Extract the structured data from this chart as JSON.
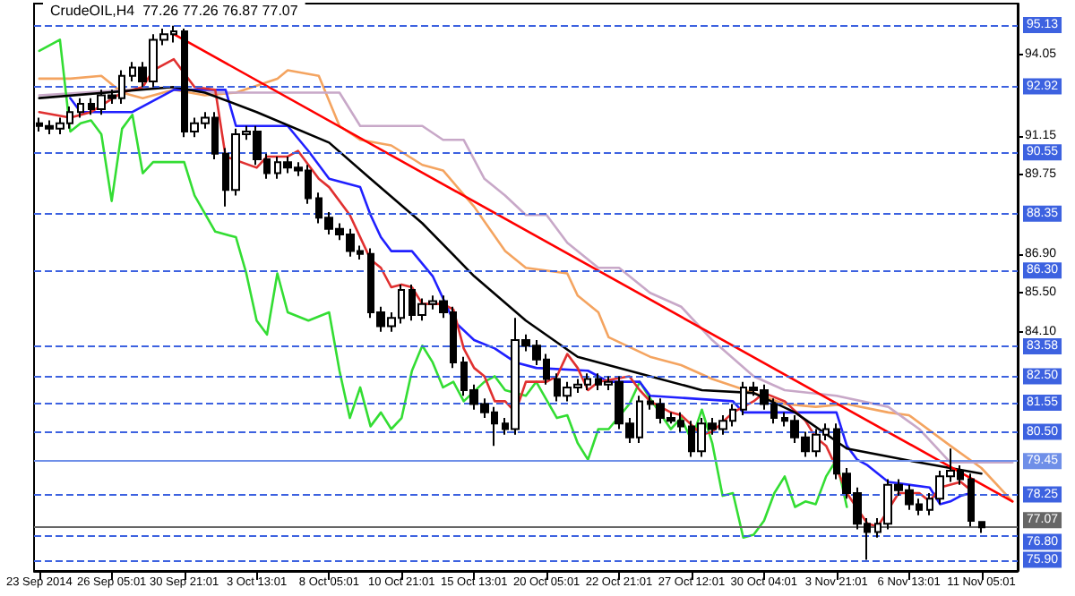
{
  "chart_data": {
    "type": "candlestick",
    "title": "CrudeOIL,H4  77.26 77.26 76.87 77.07",
    "color": "#000000",
    "categories": [
      "23 Sep 2014",
      null,
      null,
      null,
      null,
      null,
      null,
      "26 Sep 05:01",
      null,
      null,
      null,
      null,
      null,
      null,
      "30 Sep 21:01",
      null,
      null,
      null,
      null,
      null,
      null,
      "3 Oct 13:01",
      null,
      null,
      null,
      null,
      null,
      null,
      "8 Oct 05:01",
      null,
      null,
      null,
      null,
      null,
      null,
      "10 Oct 21:01",
      null,
      null,
      null,
      null,
      null,
      null,
      "15 Oct 13:01",
      null,
      null,
      null,
      null,
      null,
      null,
      "20 Oct 05:01",
      null,
      null,
      null,
      null,
      null,
      null,
      "22 Oct 21:01",
      null,
      null,
      null,
      null,
      null,
      null,
      "27 Oct 12:01",
      null,
      null,
      null,
      null,
      null,
      null,
      "30 Oct 04:01",
      null,
      null,
      null,
      null,
      null,
      null,
      "3 Nov 21:01",
      null,
      null,
      null,
      null,
      null,
      null,
      "6 Nov 13:01",
      null,
      null,
      null,
      null,
      null,
      null,
      "11 Nov 05:01",
      null,
      null,
      null
    ],
    "ohlc": [
      [
        91.6,
        91.8,
        91.3,
        91.5
      ],
      [
        91.5,
        91.7,
        91.2,
        91.4
      ],
      [
        91.4,
        91.8,
        91.2,
        91.6
      ],
      [
        91.6,
        92.2,
        91.4,
        92.0
      ],
      [
        92.0,
        92.5,
        91.8,
        92.3
      ],
      [
        92.3,
        92.5,
        91.9,
        92.1
      ],
      [
        92.1,
        92.8,
        91.9,
        92.6
      ],
      [
        92.6,
        92.8,
        92.3,
        92.5
      ],
      [
        92.5,
        93.5,
        92.3,
        93.3
      ],
      [
        93.3,
        93.8,
        93.1,
        93.6
      ],
      [
        93.6,
        93.8,
        92.9,
        93.1
      ],
      [
        93.1,
        94.8,
        92.9,
        94.6
      ],
      [
        94.6,
        95.0,
        94.4,
        94.8
      ],
      [
        94.8,
        95.1,
        94.5,
        94.9
      ],
      [
        94.9,
        95.0,
        91.1,
        91.3
      ],
      [
        91.3,
        91.8,
        91.1,
        91.6
      ],
      [
        91.6,
        92.0,
        91.4,
        91.8
      ],
      [
        91.8,
        92.0,
        90.3,
        90.5
      ],
      [
        90.5,
        90.7,
        88.6,
        89.2
      ],
      [
        89.2,
        91.4,
        89.0,
        91.2
      ],
      [
        91.2,
        91.5,
        91.0,
        91.3
      ],
      [
        91.3,
        91.5,
        90.1,
        90.3
      ],
      [
        90.3,
        90.5,
        89.6,
        89.8
      ],
      [
        89.8,
        90.4,
        89.6,
        90.2
      ],
      [
        90.2,
        90.4,
        89.8,
        90.0
      ],
      [
        90.0,
        90.2,
        89.7,
        89.9
      ],
      [
        89.9,
        90.1,
        88.7,
        88.9
      ],
      [
        88.9,
        89.1,
        88.0,
        88.2
      ],
      [
        88.2,
        88.4,
        87.6,
        87.8
      ],
      [
        87.8,
        88.0,
        87.4,
        87.6
      ],
      [
        87.6,
        87.8,
        86.8,
        87.0
      ],
      [
        87.0,
        87.2,
        86.7,
        86.9
      ],
      [
        86.9,
        87.1,
        84.6,
        84.8
      ],
      [
        84.8,
        85.0,
        84.1,
        84.3
      ],
      [
        84.3,
        84.8,
        84.1,
        84.6
      ],
      [
        84.6,
        85.8,
        84.4,
        85.6
      ],
      [
        85.6,
        85.8,
        84.5,
        84.7
      ],
      [
        84.7,
        85.3,
        84.5,
        85.1
      ],
      [
        85.1,
        85.4,
        84.9,
        85.2
      ],
      [
        85.2,
        85.4,
        84.6,
        84.8
      ],
      [
        84.8,
        85.0,
        82.8,
        83.0
      ],
      [
        83.0,
        83.2,
        81.8,
        82.0
      ],
      [
        82.0,
        82.2,
        81.3,
        81.5
      ],
      [
        81.5,
        81.7,
        81.0,
        81.2
      ],
      [
        81.2,
        81.4,
        80.0,
        80.8
      ],
      [
        80.8,
        81.0,
        80.4,
        80.6
      ],
      [
        80.6,
        84.6,
        80.4,
        83.8
      ],
      [
        83.8,
        84.0,
        83.4,
        83.6
      ],
      [
        83.6,
        83.8,
        82.9,
        83.1
      ],
      [
        83.1,
        83.3,
        82.2,
        82.4
      ],
      [
        82.4,
        82.6,
        81.6,
        81.8
      ],
      [
        81.8,
        82.3,
        81.6,
        82.1
      ],
      [
        82.1,
        82.4,
        81.9,
        82.2
      ],
      [
        82.2,
        82.6,
        82.0,
        82.4
      ],
      [
        82.4,
        82.6,
        82.0,
        82.2
      ],
      [
        82.2,
        82.5,
        82.0,
        82.3
      ],
      [
        82.3,
        82.5,
        80.6,
        80.8
      ],
      [
        80.8,
        81.0,
        80.1,
        80.3
      ],
      [
        80.3,
        81.8,
        80.1,
        81.6
      ],
      [
        81.6,
        81.8,
        81.3,
        81.5
      ],
      [
        81.5,
        81.7,
        80.8,
        81.0
      ],
      [
        81.0,
        81.2,
        80.8,
        80.9
      ],
      [
        80.9,
        81.2,
        80.5,
        80.7
      ],
      [
        80.7,
        80.9,
        79.6,
        79.8
      ],
      [
        79.8,
        81.0,
        79.6,
        80.8
      ],
      [
        80.8,
        81.0,
        80.4,
        80.6
      ],
      [
        80.6,
        81.1,
        80.4,
        80.9
      ],
      [
        80.9,
        81.5,
        80.7,
        81.3
      ],
      [
        81.3,
        82.3,
        81.1,
        82.1
      ],
      [
        82.1,
        82.3,
        81.8,
        82.0
      ],
      [
        82.0,
        82.2,
        81.3,
        81.5
      ],
      [
        81.5,
        81.7,
        80.8,
        81.0
      ],
      [
        81.0,
        81.2,
        80.7,
        80.9
      ],
      [
        80.9,
        81.1,
        80.1,
        80.3
      ],
      [
        80.3,
        80.5,
        79.6,
        79.8
      ],
      [
        79.8,
        80.6,
        79.6,
        80.4
      ],
      [
        80.4,
        80.8,
        80.2,
        80.6
      ],
      [
        80.6,
        80.8,
        78.8,
        79.0
      ],
      [
        79.0,
        79.2,
        78.1,
        78.3
      ],
      [
        78.3,
        78.5,
        77.0,
        77.2
      ],
      [
        77.2,
        77.4,
        75.9,
        76.9
      ],
      [
        76.9,
        77.4,
        76.7,
        77.2
      ],
      [
        77.2,
        78.8,
        77.0,
        78.6
      ],
      [
        78.6,
        78.8,
        78.2,
        78.4
      ],
      [
        78.4,
        78.6,
        77.7,
        77.9
      ],
      [
        77.9,
        78.1,
        77.5,
        77.7
      ],
      [
        77.7,
        78.3,
        77.5,
        78.1
      ],
      [
        78.1,
        79.1,
        77.9,
        78.9
      ],
      [
        78.9,
        79.9,
        78.7,
        79.1
      ],
      [
        79.1,
        79.3,
        78.6,
        78.8
      ],
      [
        78.8,
        79.0,
        77.1,
        77.3
      ],
      [
        77.26,
        77.26,
        76.87,
        77.07
      ],
      null,
      null,
      null
    ],
    "series": [
      {
        "type": "line",
        "color": "#f4a460",
        "values": [
          93.2,
          null,
          null,
          93.2,
          null,
          null,
          93.3,
          null,
          92.7,
          null,
          92.5,
          null,
          null,
          92.8,
          null,
          null,
          92.6,
          null,
          null,
          92.7,
          null,
          null,
          null,
          93.2,
          93.5,
          null,
          null,
          93.3,
          null,
          91.5,
          null,
          91.0,
          null,
          null,
          90.8,
          null,
          null,
          90.1,
          null,
          89.9,
          null,
          null,
          88.6,
          null,
          null,
          87.0,
          null,
          86.4,
          null,
          null,
          null,
          86.2,
          85.4,
          null,
          84.8,
          83.9,
          null,
          null,
          null,
          83.2,
          null,
          null,
          82.9,
          null,
          null,
          82.4,
          null,
          null,
          null,
          81.9,
          null,
          null,
          81.5,
          null,
          null,
          81.4,
          null,
          null,
          81.5,
          null,
          null,
          null,
          81.2,
          null,
          81.1,
          null,
          null,
          null,
          80.0,
          null,
          null,
          79.2,
          null,
          null,
          78.0
        ]
      },
      {
        "type": "line",
        "color": "#c8a8c8",
        "values": [
          92.6,
          null,
          null,
          null,
          null,
          null,
          null,
          null,
          null,
          null,
          null,
          null,
          null,
          92.9,
          null,
          null,
          92.7,
          null,
          null,
          null,
          null,
          null,
          null,
          null,
          null,
          null,
          null,
          null,
          null,
          92.7,
          null,
          91.5,
          null,
          null,
          null,
          null,
          null,
          91.5,
          null,
          91.0,
          null,
          91.0,
          null,
          89.6,
          null,
          89.0,
          null,
          88.3,
          null,
          88.3,
          null,
          87.3,
          null,
          null,
          86.4,
          null,
          86.4,
          null,
          null,
          85.5,
          null,
          null,
          85.0,
          null,
          null,
          83.8,
          null,
          null,
          null,
          82.5,
          null,
          null,
          82.0,
          null,
          null,
          null,
          null,
          81.8,
          null,
          null,
          null,
          null,
          81.4,
          null,
          null,
          80.6,
          null,
          null,
          79.4,
          null,
          null,
          null,
          null,
          null,
          79.4
        ]
      },
      {
        "type": "line",
        "color": "#33dd33",
        "values": [
          94.2,
          null,
          94.6,
          91.3,
          91.6,
          91.7,
          91.2,
          88.8,
          91.4,
          91.9,
          89.8,
          90.2,
          null,
          null,
          90.2,
          89.0,
          null,
          87.7,
          null,
          87.5,
          86.2,
          84.5,
          84.0,
          86.2,
          84.8,
          null,
          84.5,
          null,
          84.8,
          82.7,
          81.0,
          82.1,
          80.7,
          81.2,
          80.6,
          81.0,
          82.7,
          83.6,
          83.0,
          82.1,
          82.3,
          81.6,
          null,
          82.3,
          82.5,
          82.0,
          null,
          81.8,
          82.3,
          null,
          81.0,
          81.1,
          80.1,
          79.5,
          80.6,
          80.6,
          null,
          81.5,
          82.3,
          81.7,
          null,
          80.6,
          81.0,
          80.2,
          81.3,
          80.1,
          78.2,
          78.3,
          76.7,
          76.8,
          77.3,
          78.3,
          78.9,
          77.8,
          78.0,
          77.9,
          78.9,
          79.5,
          77.8,
          null,
          null,
          null,
          null,
          null,
          null,
          null,
          null,
          null,
          null,
          null,
          null,
          null,
          null,
          null,
          null
        ]
      },
      {
        "type": "line",
        "color": "#2020ff",
        "values": [
          null,
          null,
          null,
          92.5,
          92.0,
          null,
          null,
          null,
          null,
          92.0,
          null,
          null,
          null,
          92.8,
          null,
          null,
          null,
          null,
          92.8,
          91.5,
          null,
          null,
          null,
          null,
          91.5,
          null,
          90.6,
          null,
          89.6,
          null,
          null,
          89.3,
          88.3,
          87.5,
          87.0,
          null,
          87.0,
          null,
          86.1,
          null,
          84.5,
          null,
          83.8,
          null,
          83.5,
          null,
          83.0,
          null,
          82.8,
          null,
          null,
          null,
          null,
          82.7,
          null,
          82.3,
          null,
          null,
          82.3,
          81.8,
          null,
          null,
          null,
          null,
          null,
          null,
          null,
          81.6,
          81.2,
          null,
          null,
          null,
          null,
          null,
          null,
          null,
          null,
          81.2,
          80.0,
          79.5,
          79.3,
          null,
          78.7,
          null,
          null,
          null,
          78.5,
          77.9,
          78.0,
          78.2,
          78.3,
          null,
          null,
          null,
          null
        ]
      },
      {
        "type": "line",
        "color": "#e03030",
        "values": [
          92.0,
          null,
          null,
          91.8,
          null,
          92.0,
          null,
          null,
          92.7,
          null,
          92.9,
          93.5,
          null,
          93.9,
          null,
          92.9,
          null,
          92.8,
          90.4,
          null,
          null,
          90.0,
          90.4,
          null,
          90.4,
          90.6,
          null,
          89.6,
          89.3,
          null,
          88.3,
          null,
          86.7,
          86.4,
          85.7,
          85.8,
          85.7,
          85.1,
          null,
          85.1,
          84.9,
          83.5,
          82.8,
          82.5,
          81.6,
          81.6,
          81.2,
          82.3,
          null,
          82.3,
          82.5,
          83.3,
          82.8,
          82.0,
          82.3,
          null,
          null,
          82.5,
          82.0,
          81.6,
          null,
          81.2,
          81.1,
          null,
          80.4,
          80.5,
          null,
          81.2,
          null,
          81.6,
          81.9,
          null,
          81.6,
          null,
          80.9,
          80.3,
          80.0,
          79.2,
          78.3,
          null,
          77.2,
          77.1,
          77.7,
          78.3,
          null,
          78.3,
          78.0,
          78.5,
          null,
          78.7,
          78.4,
          null,
          null,
          null,
          null
        ]
      },
      {
        "type": "line",
        "color": "#000000",
        "values": [
          92.5,
          null,
          null,
          null,
          null,
          null,
          null,
          null,
          null,
          null,
          null,
          null,
          null,
          92.9,
          null,
          null,
          92.7,
          null,
          null,
          null,
          null,
          92.0,
          null,
          null,
          null,
          null,
          null,
          null,
          90.9,
          null,
          null,
          null,
          89.6,
          null,
          null,
          null,
          null,
          88.0,
          null,
          null,
          null,
          null,
          86.1,
          null,
          null,
          null,
          null,
          84.5,
          null,
          null,
          null,
          null,
          83.2,
          null,
          null,
          null,
          null,
          null,
          null,
          82.5,
          null,
          null,
          null,
          null,
          82.0,
          null,
          null,
          null,
          null,
          81.9,
          null,
          null,
          null,
          81.2,
          null,
          null,
          null,
          null,
          79.9,
          null,
          null,
          null,
          null,
          null,
          null,
          79.4,
          null,
          null,
          null,
          null,
          null,
          79.0,
          null,
          null,
          null
        ]
      },
      {
        "type": "line",
        "color": "#ff0000",
        "values": [
          null,
          null,
          null,
          null,
          null,
          null,
          null,
          null,
          null,
          null,
          null,
          null,
          null,
          94.8,
          null,
          null,
          null,
          null,
          null,
          null,
          null,
          null,
          null,
          null,
          null,
          null,
          null,
          null,
          null,
          null,
          null,
          null,
          null,
          null,
          null,
          null,
          null,
          null,
          null,
          null,
          null,
          null,
          null,
          null,
          null,
          null,
          null,
          null,
          null,
          null,
          null,
          null,
          null,
          null,
          null,
          null,
          null,
          null,
          null,
          null,
          null,
          null,
          null,
          null,
          null,
          null,
          null,
          null,
          null,
          null,
          null,
          null,
          null,
          null,
          null,
          null,
          null,
          null,
          null,
          null,
          null,
          null,
          null,
          null,
          null,
          null,
          null,
          null,
          null,
          null,
          null,
          null,
          null,
          null,
          78.0
        ]
      }
    ],
    "ylim": [
      75.5,
      95.9
    ],
    "yticks": [
      {
        "value": 84.1,
        "label": "84.10"
      },
      {
        "value": 85.5,
        "label": "85.50"
      },
      {
        "value": 86.9,
        "label": "86.90"
      },
      {
        "value": 89.75,
        "label": "89.75"
      },
      {
        "value": 91.15,
        "label": "91.15"
      },
      {
        "value": 94.05,
        "label": "94.05"
      }
    ],
    "ref_lines": [
      {
        "axis": "y",
        "value": 95.13,
        "label": "95.13",
        "color": "#3d62e0",
        "line_style": "dashed"
      },
      {
        "axis": "y",
        "value": 92.92,
        "label": "92.92",
        "color": "#3d62e0",
        "line_style": "dashed"
      },
      {
        "axis": "y",
        "value": 90.55,
        "label": "90.55",
        "color": "#3d62e0",
        "line_style": "dashed"
      },
      {
        "axis": "y",
        "value": 88.35,
        "label": "88.35",
        "color": "#3d62e0",
        "line_style": "dashed"
      },
      {
        "axis": "y",
        "value": 86.3,
        "label": "86.30",
        "color": "#3d62e0",
        "line_style": "dashed"
      },
      {
        "axis": "y",
        "value": 83.58,
        "label": "83.58",
        "color": "#3d62e0",
        "line_style": "dashed"
      },
      {
        "axis": "y",
        "value": 82.5,
        "label": "82.50",
        "color": "#3d62e0",
        "line_style": "dashed"
      },
      {
        "axis": "y",
        "value": 81.55,
        "label": "81.55",
        "color": "#3d62e0",
        "line_style": "dashed"
      },
      {
        "axis": "y",
        "value": 80.5,
        "label": "80.50",
        "color": "#3d62e0",
        "line_style": "dashed"
      },
      {
        "axis": "y",
        "value": 79.45,
        "label": "79.45",
        "color": "#6f8fe8",
        "line_style": "solid"
      },
      {
        "axis": "y",
        "value": 78.25,
        "label": "78.25",
        "color": "#3d62e0",
        "line_style": "dashed"
      },
      {
        "axis": "y",
        "value": 77.07,
        "label": "77.07",
        "color": "#666666",
        "line_style": "solid"
      },
      {
        "axis": "y",
        "value": 76.8,
        "label": "76.80",
        "color": "#3d62e0",
        "line_style": "dashed"
      },
      {
        "axis": "y",
        "value": 75.9,
        "label": "75.90",
        "color": "#3d62e0",
        "line_style": "dashed"
      }
    ],
    "grid": false,
    "line_style": "solid"
  }
}
